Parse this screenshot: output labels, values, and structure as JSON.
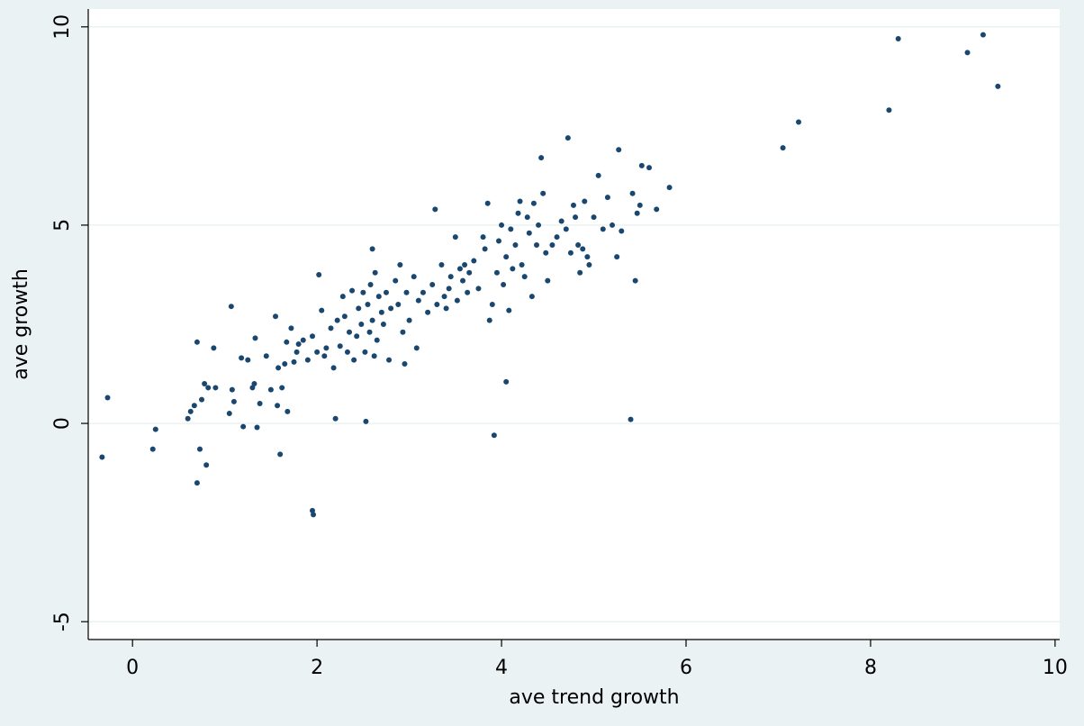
{
  "chart_data": {
    "type": "scatter",
    "xlabel": "ave trend growth",
    "ylabel": "ave growth",
    "color": "#1a476f",
    "grid": true,
    "xlim": [
      -0.48,
      10.05
    ],
    "ylim": [
      -5.45,
      10.45
    ],
    "xticks": [
      0,
      2,
      4,
      6,
      8,
      10
    ],
    "yticks": [
      -5,
      0,
      5,
      10
    ],
    "x": [
      -0.33,
      -0.27,
      0.22,
      0.25,
      0.6,
      0.63,
      0.67,
      0.7,
      0.7,
      0.73,
      0.75,
      0.78,
      0.8,
      0.82,
      0.88,
      0.9,
      1.05,
      1.07,
      1.08,
      1.1,
      1.18,
      1.2,
      1.25,
      1.3,
      1.32,
      1.33,
      1.35,
      1.38,
      1.45,
      1.5,
      1.55,
      1.57,
      1.58,
      1.6,
      1.62,
      1.65,
      1.67,
      1.68,
      1.72,
      1.75,
      1.78,
      1.8,
      1.85,
      1.9,
      1.95,
      1.96,
      1.95,
      2.0,
      2.02,
      2.05,
      2.08,
      2.1,
      2.15,
      2.18,
      2.2,
      2.22,
      2.25,
      2.28,
      2.3,
      2.33,
      2.35,
      2.38,
      2.4,
      2.43,
      2.45,
      2.48,
      2.5,
      2.52,
      2.53,
      2.55,
      2.57,
      2.58,
      2.6,
      2.6,
      2.62,
      2.63,
      2.65,
      2.67,
      2.7,
      2.72,
      2.75,
      2.78,
      2.8,
      2.85,
      2.88,
      2.9,
      2.93,
      2.95,
      2.97,
      3.0,
      3.05,
      3.08,
      3.1,
      3.15,
      3.2,
      3.25,
      3.28,
      3.3,
      3.35,
      3.38,
      3.4,
      3.43,
      3.45,
      3.5,
      3.52,
      3.55,
      3.58,
      3.6,
      3.63,
      3.65,
      3.7,
      3.75,
      3.8,
      3.82,
      3.85,
      3.87,
      3.9,
      3.92,
      3.95,
      3.97,
      4.0,
      4.02,
      4.05,
      4.05,
      4.08,
      4.1,
      4.12,
      4.15,
      4.18,
      4.2,
      4.22,
      4.25,
      4.28,
      4.3,
      4.33,
      4.35,
      4.38,
      4.4,
      4.43,
      4.45,
      4.48,
      4.5,
      4.55,
      4.6,
      4.65,
      4.7,
      4.72,
      4.75,
      4.78,
      4.8,
      4.83,
      4.85,
      4.88,
      4.9,
      4.93,
      4.95,
      5.0,
      5.05,
      5.1,
      5.15,
      5.2,
      5.25,
      5.27,
      5.3,
      5.4,
      5.42,
      5.45,
      5.47,
      5.5,
      5.52,
      5.6,
      5.68,
      5.82,
      7.05,
      7.22,
      8.2,
      8.3,
      9.05,
      9.22,
      9.38
    ],
    "values": [
      -0.85,
      0.65,
      -0.65,
      -0.15,
      0.12,
      0.3,
      0.45,
      2.05,
      -1.5,
      -0.65,
      0.6,
      1.0,
      -1.05,
      0.9,
      1.9,
      0.9,
      0.25,
      2.95,
      0.85,
      0.55,
      1.65,
      -0.08,
      1.6,
      0.9,
      1.0,
      2.15,
      -0.1,
      0.5,
      1.7,
      0.85,
      2.7,
      0.45,
      1.4,
      -0.78,
      0.9,
      1.5,
      2.05,
      0.3,
      2.4,
      1.55,
      1.8,
      2.0,
      2.1,
      1.6,
      -2.2,
      -2.3,
      2.2,
      1.8,
      3.75,
      2.85,
      1.7,
      1.9,
      2.4,
      1.4,
      0.12,
      2.6,
      1.95,
      3.2,
      2.7,
      1.8,
      2.3,
      3.35,
      1.6,
      2.2,
      2.9,
      2.5,
      3.3,
      1.8,
      0.05,
      3.0,
      2.3,
      3.5,
      4.4,
      2.6,
      1.7,
      3.8,
      2.1,
      3.2,
      2.8,
      2.5,
      3.3,
      1.6,
      2.9,
      3.6,
      3.0,
      4.0,
      2.3,
      1.5,
      3.3,
      2.6,
      3.7,
      1.9,
      3.1,
      3.3,
      2.8,
      3.5,
      5.4,
      3.0,
      4.0,
      3.2,
      2.9,
      3.4,
      3.7,
      4.7,
      3.1,
      3.9,
      3.6,
      4.0,
      3.3,
      3.8,
      4.1,
      3.4,
      4.7,
      4.4,
      5.55,
      2.6,
      3.0,
      -0.3,
      3.8,
      4.6,
      5.0,
      3.5,
      1.05,
      4.2,
      2.85,
      4.9,
      3.9,
      4.5,
      5.3,
      5.6,
      4.0,
      3.7,
      5.2,
      4.8,
      3.2,
      5.55,
      4.5,
      5.0,
      6.7,
      5.8,
      4.3,
      3.6,
      4.5,
      4.7,
      5.1,
      4.9,
      7.2,
      4.3,
      5.5,
      5.2,
      4.5,
      3.8,
      4.4,
      5.6,
      4.2,
      4.0,
      5.2,
      6.25,
      4.9,
      5.7,
      5.0,
      4.2,
      6.9,
      4.85,
      0.1,
      5.8,
      3.6,
      5.3,
      5.5,
      6.5,
      6.45,
      5.4,
      5.95,
      6.95,
      7.6,
      7.9,
      9.7,
      9.35,
      9.8,
      8.5
    ]
  }
}
